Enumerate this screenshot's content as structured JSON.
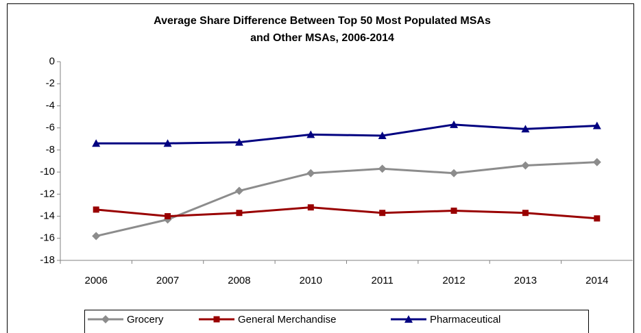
{
  "chart_data": {
    "type": "line",
    "title": [
      "Average Share Difference Between Top 50 Most Populated MSAs",
      "and Other MSAs, 2006-2014"
    ],
    "categories": [
      "2006",
      "2007",
      "2008",
      "2010",
      "2011",
      "2012",
      "2013",
      "2014"
    ],
    "series": [
      {
        "name": "Grocery",
        "color": "#8c8c8c",
        "marker": "diamond",
        "values": [
          -15.8,
          -14.3,
          -11.7,
          -10.1,
          -9.7,
          -10.1,
          -9.4,
          -9.1
        ]
      },
      {
        "name": "General Merchandise",
        "color": "#990000",
        "marker": "square",
        "values": [
          -13.4,
          -14.0,
          -13.7,
          -13.2,
          -13.7,
          -13.5,
          -13.7,
          -14.2
        ]
      },
      {
        "name": "Pharmaceutical",
        "color": "#000080",
        "marker": "triangle",
        "values": [
          -7.4,
          -7.4,
          -7.3,
          -6.6,
          -6.7,
          -5.7,
          -6.1,
          -5.8
        ]
      }
    ],
    "ylim": [
      -18,
      0
    ],
    "yticks": [
      0,
      -2,
      -4,
      -6,
      -8,
      -10,
      -12,
      -14,
      -16,
      -18
    ],
    "grid": false,
    "legend": "bottom"
  }
}
